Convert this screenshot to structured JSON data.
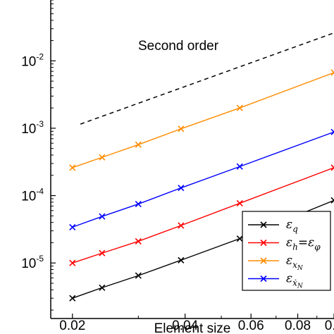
{
  "chart_data": {
    "type": "line",
    "title": "",
    "xlabel": "Element size",
    "ylabel": "",
    "xscale": "log",
    "yscale": "log",
    "xlim": [
      0.0175,
      0.1
    ],
    "ylim": [
      1.5e-06,
      0.08
    ],
    "grid": false,
    "legend_position": "bottom-right",
    "x_ticks": [
      {
        "value": 0.02,
        "label": "0.02"
      },
      {
        "value": 0.04,
        "label": "0.04"
      },
      {
        "value": 0.06,
        "label": "0.06"
      },
      {
        "value": 0.08,
        "label": "0.08"
      },
      {
        "value": 0.1,
        "label": "0.1"
      }
    ],
    "y_ticks": [
      {
        "value": 1e-05,
        "base": "10",
        "exp": "-5"
      },
      {
        "value": 0.0001,
        "base": "10",
        "exp": "-4"
      },
      {
        "value": 0.001,
        "base": "10",
        "exp": "-3"
      },
      {
        "value": 0.01,
        "base": "10",
        "exp": "-2"
      }
    ],
    "x": [
      0.02,
      0.024,
      0.03,
      0.039,
      0.056,
      0.1
    ],
    "series": [
      {
        "name": "εq",
        "color": "#000000",
        "marker": "x",
        "values": [
          3e-06,
          4.3e-06,
          6.5e-06,
          1.1e-05,
          2.3e-05,
          8.5e-05
        ]
      },
      {
        "name": "εh=εφ",
        "color": "#ff0000",
        "marker": "x",
        "values": [
          1e-05,
          1.4e-05,
          2.1e-05,
          3.6e-05,
          7.7e-05,
          0.00026
        ]
      },
      {
        "name": "εxN",
        "color": "#ff8c00",
        "marker": "x",
        "values": [
          0.00026,
          0.00037,
          0.00057,
          0.00098,
          0.002,
          0.0067
        ]
      },
      {
        "name": "εẋN",
        "color": "#0000ff",
        "marker": "x",
        "values": [
          3.4e-05,
          4.9e-05,
          7.5e-05,
          0.00013,
          0.00027,
          0.00088
        ]
      }
    ],
    "reference_line": {
      "label": "Second order",
      "style": "dashed",
      "color": "#000000",
      "x": [
        0.021,
        0.1
      ],
      "y": [
        0.00115,
        0.026
      ]
    },
    "legend_labels": [
      {
        "main": "ε",
        "sub": "q"
      },
      {
        "main": "ε",
        "sub": "h",
        "mid": "=ε",
        "sub2": "φ"
      },
      {
        "main": "ε",
        "sub": "x",
        "subsub": "N"
      },
      {
        "main": "ε",
        "sub": "ẋ",
        "subsub": "N"
      }
    ]
  }
}
